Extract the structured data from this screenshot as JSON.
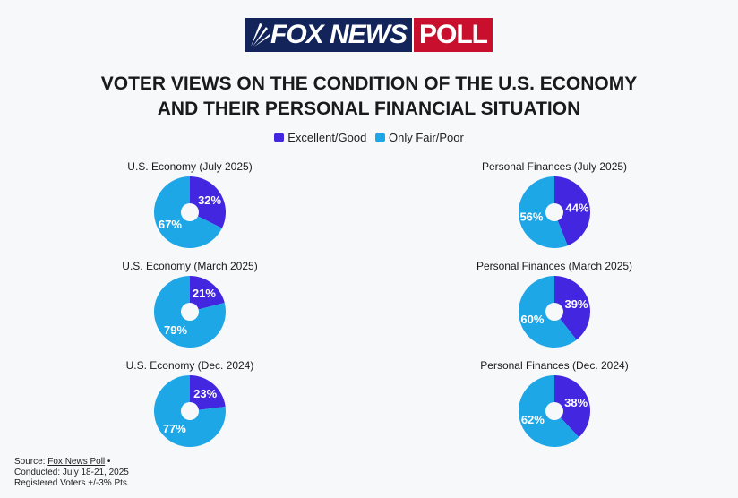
{
  "logo": {
    "fox_news": "FOX NEWS",
    "poll": "POLL"
  },
  "title_line1": "VOTER VIEWS ON THE CONDITION OF THE U.S. ECONOMY",
  "title_line2": "AND THEIR PERSONAL FINANCIAL SITUATION",
  "legend": [
    {
      "label": "Excellent/Good",
      "color": "#4327e0"
    },
    {
      "label": "Only Fair/Poor",
      "color": "#1ea7e7"
    }
  ],
  "chart_data": [
    {
      "type": "pie",
      "title": "U.S. Economy (July 2025)",
      "categories": [
        "Excellent/Good",
        "Only Fair/Poor"
      ],
      "values": [
        32,
        67
      ],
      "labels": [
        "32%",
        "67%"
      ]
    },
    {
      "type": "pie",
      "title": "U.S. Economy (March 2025)",
      "categories": [
        "Excellent/Good",
        "Only Fair/Poor"
      ],
      "values": [
        21,
        79
      ],
      "labels": [
        "21%",
        "79%"
      ]
    },
    {
      "type": "pie",
      "title": "U.S. Economy (Dec. 2024)",
      "categories": [
        "Excellent/Good",
        "Only Fair/Poor"
      ],
      "values": [
        23,
        77
      ],
      "labels": [
        "23%",
        "77%"
      ]
    },
    {
      "type": "pie",
      "title": "Personal Finances (July 2025)",
      "categories": [
        "Excellent/Good",
        "Only Fair/Poor"
      ],
      "values": [
        44,
        56
      ],
      "labels": [
        "44%",
        "56%"
      ]
    },
    {
      "type": "pie",
      "title": "Personal Finances (March 2025)",
      "categories": [
        "Excellent/Good",
        "Only Fair/Poor"
      ],
      "values": [
        39,
        60
      ],
      "labels": [
        "39%",
        "60%"
      ]
    },
    {
      "type": "pie",
      "title": "Personal Finances (Dec. 2024)",
      "categories": [
        "Excellent/Good",
        "Only Fair/Poor"
      ],
      "values": [
        38,
        62
      ],
      "labels": [
        "38%",
        "62%"
      ]
    }
  ],
  "source": {
    "prefix": "Source: ",
    "link": "Fox News Poll",
    "bullet": " •",
    "line2": "Conducted: July 18-21, 2025",
    "line3": "Registered Voters +/-3% Pts."
  }
}
